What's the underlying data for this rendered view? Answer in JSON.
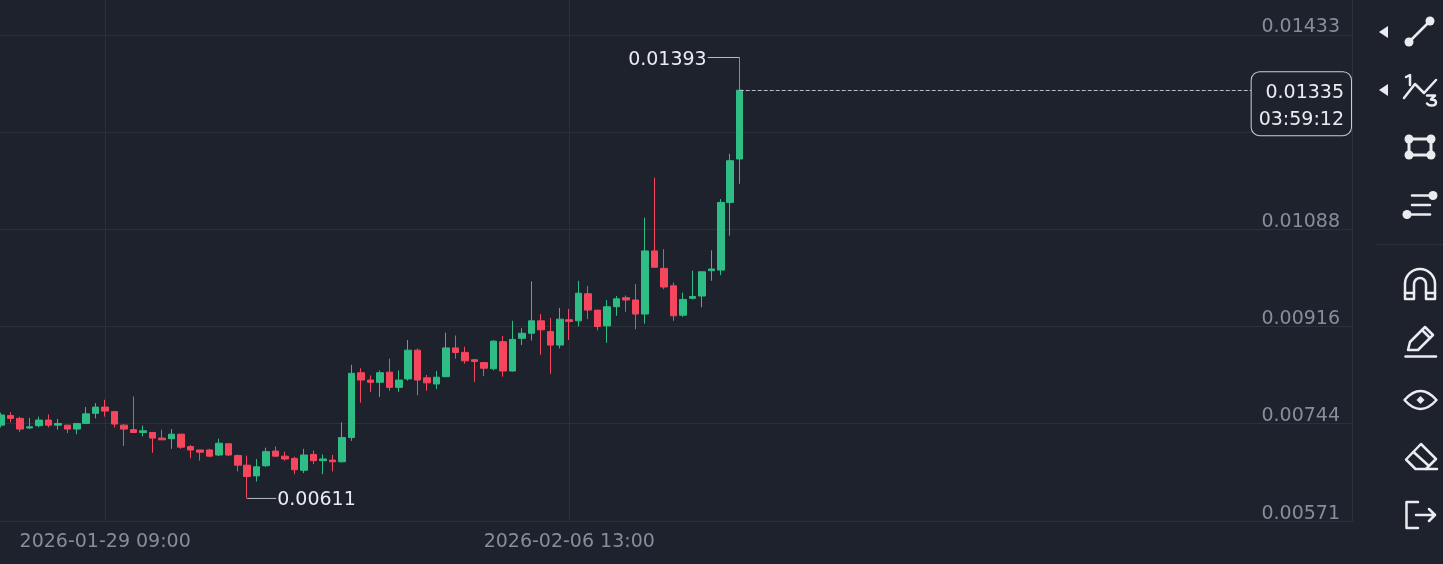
{
  "chart_data": {
    "type": "candlestick",
    "x": [
      "2026-01-27T13:00",
      "2026-01-27T17:00",
      "2026-01-27T21:00",
      "2026-01-28T01:00",
      "2026-01-28T05:00",
      "2026-01-28T09:00",
      "2026-01-28T13:00",
      "2026-01-28T17:00",
      "2026-01-28T21:00",
      "2026-01-29T01:00",
      "2026-01-29T05:00",
      "2026-01-29T09:00",
      "2026-01-29T13:00",
      "2026-01-29T17:00",
      "2026-01-29T21:00",
      "2026-01-30T01:00",
      "2026-01-30T05:00",
      "2026-01-30T09:00",
      "2026-01-30T13:00",
      "2026-01-30T17:00",
      "2026-01-30T21:00",
      "2026-01-31T01:00",
      "2026-01-31T05:00",
      "2026-01-31T09:00",
      "2026-01-31T13:00",
      "2026-01-31T17:00",
      "2026-01-31T21:00",
      "2026-02-01T01:00",
      "2026-02-01T05:00",
      "2026-02-01T09:00",
      "2026-02-01T13:00",
      "2026-02-01T17:00",
      "2026-02-01T21:00",
      "2026-02-02T01:00",
      "2026-02-02T05:00",
      "2026-02-02T09:00",
      "2026-02-02T13:00",
      "2026-02-02T17:00",
      "2026-02-02T21:00",
      "2026-02-03T01:00",
      "2026-02-03T05:00",
      "2026-02-03T09:00",
      "2026-02-03T13:00",
      "2026-02-03T17:00",
      "2026-02-03T21:00",
      "2026-02-04T01:00",
      "2026-02-04T05:00",
      "2026-02-04T09:00",
      "2026-02-04T13:00",
      "2026-02-04T17:00",
      "2026-02-04T21:00",
      "2026-02-05T01:00",
      "2026-02-05T05:00",
      "2026-02-05T09:00",
      "2026-02-05T13:00",
      "2026-02-05T17:00",
      "2026-02-05T21:00",
      "2026-02-06T01:00",
      "2026-02-06T05:00",
      "2026-02-06T09:00",
      "2026-02-06T13:00",
      "2026-02-06T17:00",
      "2026-02-06T21:00",
      "2026-02-07T01:00",
      "2026-02-07T05:00",
      "2026-02-07T09:00",
      "2026-02-07T13:00",
      "2026-02-07T17:00",
      "2026-02-07T21:00",
      "2026-02-08T01:00",
      "2026-02-08T05:00",
      "2026-02-08T09:00",
      "2026-02-08T13:00",
      "2026-02-08T17:00",
      "2026-02-08T21:00",
      "2026-02-09T01:00",
      "2026-02-09T05:00",
      "2026-02-09T09:00",
      "2026-02-09T13:00"
    ],
    "ohlc": [
      [
        0.00741,
        0.00763,
        0.00737,
        0.00759
      ],
      [
        0.00758,
        0.00764,
        0.00746,
        0.00753
      ],
      [
        0.00753,
        0.00756,
        0.00729,
        0.00734
      ],
      [
        0.00736,
        0.00754,
        0.00734,
        0.00738
      ],
      [
        0.0074,
        0.00756,
        0.00737,
        0.0075
      ],
      [
        0.0075,
        0.0076,
        0.00737,
        0.00741
      ],
      [
        0.00741,
        0.00752,
        0.00733,
        0.00744
      ],
      [
        0.00741,
        0.00741,
        0.00727,
        0.00734
      ],
      [
        0.00734,
        0.00745,
        0.00725,
        0.00744
      ],
      [
        0.00744,
        0.00773,
        0.00743,
        0.00761
      ],
      [
        0.00762,
        0.0078,
        0.00753,
        0.00773
      ],
      [
        0.00773,
        0.00786,
        0.00756,
        0.00766
      ],
      [
        0.00765,
        0.00765,
        0.00737,
        0.00743
      ],
      [
        0.00741,
        0.00743,
        0.00704,
        0.00734
      ],
      [
        0.00733,
        0.00792,
        0.00728,
        0.00728
      ],
      [
        0.00728,
        0.0074,
        0.00721,
        0.00731
      ],
      [
        0.00728,
        0.00729,
        0.00692,
        0.00718
      ],
      [
        0.00718,
        0.00733,
        0.00715,
        0.00715
      ],
      [
        0.00717,
        0.00734,
        0.00699,
        0.00725
      ],
      [
        0.00725,
        0.00725,
        0.00699,
        0.00702
      ],
      [
        0.00703,
        0.00706,
        0.00682,
        0.00697
      ],
      [
        0.00697,
        0.00697,
        0.00678,
        0.00693
      ],
      [
        0.00697,
        0.00699,
        0.00684,
        0.00686
      ],
      [
        0.00688,
        0.00717,
        0.00686,
        0.00709
      ],
      [
        0.00708,
        0.00708,
        0.00686,
        0.00688
      ],
      [
        0.00687,
        0.00689,
        0.00659,
        0.0067
      ],
      [
        0.0067,
        0.00687,
        0.00611,
        0.0065
      ],
      [
        0.00651,
        0.00681,
        0.00641,
        0.00667
      ],
      [
        0.00669,
        0.00701,
        0.00667,
        0.00694
      ],
      [
        0.00695,
        0.00703,
        0.00685,
        0.00686
      ],
      [
        0.00686,
        0.00694,
        0.00678,
        0.00681
      ],
      [
        0.00682,
        0.00685,
        0.00654,
        0.00662
      ],
      [
        0.00661,
        0.00699,
        0.00656,
        0.00688
      ],
      [
        0.00689,
        0.00696,
        0.00672,
        0.00678
      ],
      [
        0.00678,
        0.00689,
        0.00654,
        0.00681
      ],
      [
        0.00679,
        0.00688,
        0.00659,
        0.00676
      ],
      [
        0.00676,
        0.00746,
        0.00675,
        0.00719
      ],
      [
        0.00719,
        0.00848,
        0.00713,
        0.00833
      ],
      [
        0.00834,
        0.00842,
        0.00781,
        0.00821
      ],
      [
        0.00821,
        0.00829,
        0.008,
        0.00817
      ],
      [
        0.00817,
        0.00838,
        0.00791,
        0.00834
      ],
      [
        0.00835,
        0.00859,
        0.00802,
        0.00808
      ],
      [
        0.00808,
        0.00838,
        0.008,
        0.00821
      ],
      [
        0.00823,
        0.00892,
        0.0082,
        0.00874
      ],
      [
        0.00874,
        0.00877,
        0.00794,
        0.00821
      ],
      [
        0.00825,
        0.0083,
        0.00802,
        0.00816
      ],
      [
        0.00814,
        0.00837,
        0.00805,
        0.00826
      ],
      [
        0.00827,
        0.00905,
        0.00826,
        0.00878
      ],
      [
        0.00878,
        0.009,
        0.00859,
        0.0087
      ],
      [
        0.0087,
        0.0088,
        0.0085,
        0.00855
      ],
      [
        0.00857,
        0.00858,
        0.00818,
        0.00854
      ],
      [
        0.00852,
        0.00852,
        0.00828,
        0.00842
      ],
      [
        0.00841,
        0.00892,
        0.00838,
        0.0089
      ],
      [
        0.00889,
        0.00899,
        0.00827,
        0.00837
      ],
      [
        0.00837,
        0.00926,
        0.00836,
        0.00893
      ],
      [
        0.00895,
        0.00913,
        0.00883,
        0.00904
      ],
      [
        0.00904,
        0.00996,
        0.00891,
        0.00926
      ],
      [
        0.00926,
        0.00938,
        0.00866,
        0.0091
      ],
      [
        0.00907,
        0.00931,
        0.00832,
        0.00883
      ],
      [
        0.00883,
        0.00949,
        0.00877,
        0.00929
      ],
      [
        0.00928,
        0.00947,
        0.00892,
        0.00925
      ],
      [
        0.00926,
        0.00997,
        0.00916,
        0.00975
      ],
      [
        0.00974,
        0.00988,
        0.00929,
        0.00945
      ],
      [
        0.00945,
        0.00945,
        0.00909,
        0.00916
      ],
      [
        0.00917,
        0.00963,
        0.00887,
        0.00951
      ],
      [
        0.00951,
        0.0097,
        0.00935,
        0.00965
      ],
      [
        0.00967,
        0.00971,
        0.00942,
        0.00963
      ],
      [
        0.00963,
        0.00991,
        0.00911,
        0.00938
      ],
      [
        0.00938,
        0.01109,
        0.00921,
        0.0105
      ],
      [
        0.0105,
        0.0118,
        0.01021,
        0.01021
      ],
      [
        0.01019,
        0.01053,
        0.00982,
        0.00986
      ],
      [
        0.00988,
        0.00994,
        0.00926,
        0.00935
      ],
      [
        0.00936,
        0.00976,
        0.00933,
        0.00964
      ],
      [
        0.00966,
        0.01015,
        0.00964,
        0.00969
      ],
      [
        0.0097,
        0.01013,
        0.0095,
        0.01013
      ],
      [
        0.01015,
        0.01051,
        0.00997,
        0.01018
      ],
      [
        0.01016,
        0.01142,
        0.01007,
        0.01136
      ],
      [
        0.01136,
        0.01222,
        0.01077,
        0.0121
      ],
      [
        0.01213,
        0.01393,
        0.01169,
        0.01335
      ]
    ],
    "colors": [
      "#2ebd85",
      "#f6465d",
      "#f6465d",
      "#2ebd85",
      "#2ebd85",
      "#f6465d",
      "#2ebd85",
      "#f6465d",
      "#2ebd85",
      "#2ebd85",
      "#2ebd85",
      "#f6465d",
      "#f6465d",
      "#f6465d",
      "#f6465d",
      "#2ebd85",
      "#f6465d",
      "#f6465d",
      "#2ebd85",
      "#f6465d",
      "#f6465d",
      "#f6465d",
      "#f6465d",
      "#2ebd85",
      "#f6465d",
      "#f6465d",
      "#f6465d",
      "#2ebd85",
      "#2ebd85",
      "#f6465d",
      "#f6465d",
      "#f6465d",
      "#2ebd85",
      "#f6465d",
      "#2ebd85",
      "#f6465d",
      "#2ebd85",
      "#2ebd85",
      "#f6465d",
      "#f6465d",
      "#2ebd85",
      "#f6465d",
      "#2ebd85",
      "#2ebd85",
      "#f6465d",
      "#f6465d",
      "#2ebd85",
      "#2ebd85",
      "#f6465d",
      "#f6465d",
      "#f6465d",
      "#f6465d",
      "#2ebd85",
      "#f6465d",
      "#2ebd85",
      "#2ebd85",
      "#2ebd85",
      "#f6465d",
      "#f6465d",
      "#2ebd85",
      "#f6465d",
      "#2ebd85",
      "#f6465d",
      "#f6465d",
      "#2ebd85",
      "#2ebd85",
      "#f6465d",
      "#f6465d",
      "#2ebd85",
      "#f6465d",
      "#f6465d",
      "#f6465d",
      "#2ebd85",
      "#2ebd85",
      "#2ebd85",
      "#2ebd85",
      "#2ebd85",
      "#2ebd85",
      "#2ebd85"
    ],
    "xlim": [
      "2026-01-27T12:35",
      "2026-02-20T07:36"
    ],
    "xticks": [
      {
        "value": "2026-01-29T09:00",
        "label": "2026-01-29 09:00"
      },
      {
        "value": "2026-02-06T13:00",
        "label": "2026-02-06 13:00"
      }
    ],
    "ylim": [
      0.00571,
      0.01495
    ],
    "yticks": [
      0.00571,
      0.00744,
      0.00916,
      0.01088,
      {
        "value": 0.01261,
        "label": null
      },
      0.01433
    ],
    "grid": true,
    "ref_lines": [
      {
        "axis": "y",
        "value": 0.01335,
        "label": "0.01335",
        "color": "#b7bdc6",
        "line_style": "dashed"
      }
    ],
    "annotations": [
      {
        "text": "0.01393",
        "x": "2026-02-09T13:00",
        "y": 0.01393
      },
      {
        "text": "0.00611",
        "x": "2026-01-31T21:00",
        "y": 0.00611
      },
      "03:59:12"
    ]
  }
}
